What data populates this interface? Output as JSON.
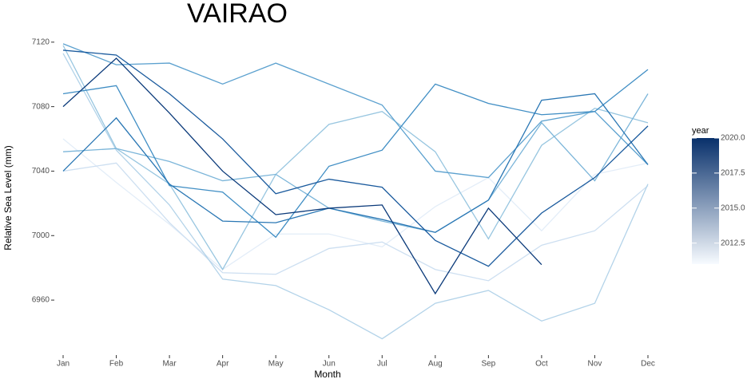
{
  "chart_data": {
    "type": "line",
    "title": "VAIRAO",
    "x_label": "Month",
    "y_label": "Relative Sea Level (mm)",
    "categories": [
      "Jan",
      "Feb",
      "Mar",
      "Apr",
      "May",
      "Jun",
      "Jul",
      "Aug",
      "Sep",
      "Oct",
      "Nov",
      "Dec"
    ],
    "ylim": [
      6930,
      7126
    ],
    "yticks": [
      6960,
      7000,
      7040,
      7080,
      7120
    ],
    "grid": false,
    "series": [
      {
        "color": "#e3edf8",
        "values": [
          7060,
          7033,
          7007,
          6979,
          7001,
          7001,
          6993,
          7018,
          7036,
          7003,
          7038,
          7045
        ]
      },
      {
        "color": "#cddff1",
        "values": [
          7040,
          7045,
          7008,
          6977,
          6976,
          6992,
          6996,
          6979,
          6972,
          6994,
          7003,
          7031
        ]
      },
      {
        "color": "#b3d3e9",
        "values": [
          7113,
          7053,
          7019,
          6973,
          6969,
          6954,
          6936,
          6958,
          6966,
          6947,
          6958,
          7032
        ]
      },
      {
        "color": "#98c6e0",
        "values": [
          7118,
          7054,
          7032,
          6979,
          7038,
          7069,
          7077,
          7052,
          6998,
          7056,
          7079,
          7070
        ]
      },
      {
        "color": "#7bb5d9",
        "values": [
          7052,
          7054,
          7046,
          7034,
          7038,
          7017,
          7009,
          7002,
          7022,
          7070,
          7034,
          7088
        ]
      },
      {
        "color": "#5ca1cf",
        "values": [
          7119,
          7106,
          7107,
          7094,
          7107,
          7094,
          7081,
          7040,
          7036,
          7071,
          7077,
          7044
        ]
      },
      {
        "color": "#408ec4",
        "values": [
          7088,
          7093,
          7031,
          7027,
          6999,
          7043,
          7053,
          7094,
          7082,
          7075,
          7077,
          7103
        ]
      },
      {
        "color": "#2a77b4",
        "values": [
          7040,
          7073,
          7032,
          7009,
          7008,
          7017,
          7010,
          7002,
          7022,
          7084,
          7088,
          7044
        ]
      },
      {
        "color": "#1a5a9d",
        "values": [
          7115,
          7112,
          7088,
          7060,
          7026,
          7035,
          7030,
          6997,
          6981,
          7014,
          7036,
          7068
        ]
      },
      {
        "color": "#0b3a7a",
        "values": [
          7080,
          7110,
          7076,
          7040,
          7013,
          7017,
          7019,
          6964,
          7017,
          6982,
          null,
          null
        ]
      }
    ],
    "legend": {
      "title": "year",
      "limits": [
        2011,
        2020
      ],
      "colors": [
        "#f7fbff",
        "#08306b"
      ],
      "ticks": [
        2012.5,
        {
          "value": 2015,
          "label": "2015.0"
        },
        2017.5,
        {
          "value": 2020,
          "label": "2020.0"
        }
      ]
    }
  }
}
